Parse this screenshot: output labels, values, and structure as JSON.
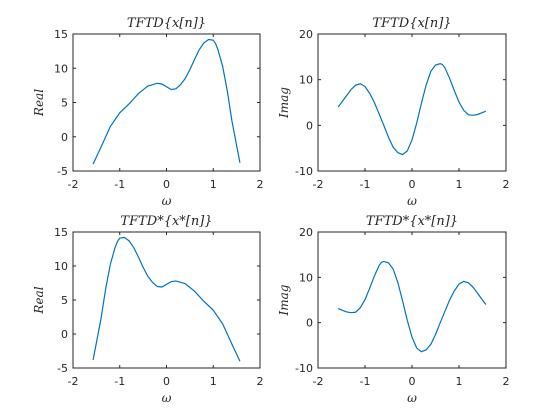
{
  "chart_data": [
    {
      "type": "line",
      "title": "TFTD{x[n]}",
      "xlabel": "ω",
      "ylabel": "Real",
      "xlim": [
        -2,
        2
      ],
      "ylim": [
        -5,
        15
      ],
      "xticks": [
        "-2",
        "-1",
        "0",
        "1",
        "2"
      ],
      "yticks": [
        "-5",
        "0",
        "5",
        "10",
        "15"
      ],
      "grid": false,
      "series": [
        {
          "x": [
            -1.571,
            -1.4,
            -1.2,
            -1.0,
            -0.8,
            -0.6,
            -0.4,
            -0.2,
            -0.1,
            0.0,
            0.1,
            0.2,
            0.3,
            0.4,
            0.5,
            0.6,
            0.7,
            0.8,
            0.9,
            1.0,
            1.05,
            1.1,
            1.2,
            1.3,
            1.4,
            1.5,
            1.571
          ],
          "y": [
            -4,
            -1.5,
            1.5,
            3.5,
            4.8,
            6.3,
            7.4,
            7.8,
            7.7,
            7.3,
            6.9,
            7.0,
            7.6,
            8.5,
            9.8,
            11.3,
            12.7,
            13.7,
            14.2,
            14.1,
            13.6,
            12.7,
            10.3,
            6.7,
            2.3,
            -1.3,
            -3.8
          ],
          "color": "#0072bd"
        }
      ]
    },
    {
      "type": "line",
      "title": "TFTD{x[n]}",
      "xlabel": "ω",
      "ylabel": "Imag",
      "xlim": [
        -2,
        2
      ],
      "ylim": [
        -10,
        20
      ],
      "xticks": [
        "-2",
        "-1",
        "0",
        "1",
        "2"
      ],
      "yticks": [
        "-10",
        "0",
        "10",
        "20"
      ],
      "grid": false,
      "series": [
        {
          "x": [
            -1.571,
            -1.4,
            -1.3,
            -1.2,
            -1.1,
            -1.0,
            -0.9,
            -0.8,
            -0.7,
            -0.6,
            -0.5,
            -0.4,
            -0.3,
            -0.2,
            -0.1,
            0.0,
            0.1,
            0.2,
            0.3,
            0.4,
            0.5,
            0.6,
            0.65,
            0.7,
            0.8,
            0.9,
            1.0,
            1.1,
            1.2,
            1.3,
            1.4,
            1.5,
            1.571
          ],
          "y": [
            4,
            6.4,
            7.8,
            8.8,
            9.1,
            8.5,
            7.0,
            5.0,
            2.5,
            0.0,
            -2.6,
            -4.8,
            -6.0,
            -6.4,
            -5.6,
            -3.2,
            0.5,
            4.8,
            8.8,
            11.8,
            13.2,
            13.5,
            13.3,
            12.6,
            10.3,
            7.6,
            5.1,
            3.3,
            2.3,
            2.2,
            2.4,
            2.8,
            3.1
          ],
          "color": "#0072bd"
        }
      ]
    },
    {
      "type": "line",
      "title": "TFTD*{x*[n]}",
      "xlabel": "ω",
      "ylabel": "Real",
      "xlim": [
        -2,
        2
      ],
      "ylim": [
        -5,
        15
      ],
      "xticks": [
        "-2",
        "-1",
        "0",
        "1",
        "2"
      ],
      "yticks": [
        "-5",
        "0",
        "5",
        "10",
        "15"
      ],
      "grid": false,
      "series": [
        {
          "x": [
            -1.571,
            -1.5,
            -1.4,
            -1.3,
            -1.2,
            -1.1,
            -1.05,
            -1.0,
            -0.9,
            -0.8,
            -0.7,
            -0.6,
            -0.5,
            -0.4,
            -0.3,
            -0.2,
            -0.1,
            0.0,
            0.1,
            0.2,
            0.4,
            0.6,
            0.8,
            1.0,
            1.2,
            1.4,
            1.571
          ],
          "y": [
            -3.8,
            -1.3,
            2.3,
            6.7,
            10.3,
            12.7,
            13.6,
            14.1,
            14.2,
            13.7,
            12.7,
            11.3,
            9.8,
            8.5,
            7.6,
            7.0,
            6.9,
            7.3,
            7.7,
            7.8,
            7.4,
            6.3,
            4.8,
            3.5,
            1.5,
            -1.5,
            -4
          ]
        }
      ]
    },
    {
      "type": "line",
      "title": "TFTD*{x*[n]}",
      "xlabel": "ω",
      "ylabel": "Imag",
      "xlim": [
        -2,
        2
      ],
      "ylim": [
        -10,
        20
      ],
      "xticks": [
        "-2",
        "-1",
        "0",
        "1",
        "2"
      ],
      "yticks": [
        "-10",
        "0",
        "10",
        "20"
      ],
      "grid": false,
      "series": [
        {
          "x": [
            -1.571,
            -1.5,
            -1.4,
            -1.3,
            -1.2,
            -1.1,
            -1.0,
            -0.9,
            -0.8,
            -0.7,
            -0.65,
            -0.6,
            -0.5,
            -0.4,
            -0.3,
            -0.2,
            -0.1,
            0.0,
            0.1,
            0.2,
            0.3,
            0.4,
            0.5,
            0.6,
            0.7,
            0.8,
            0.9,
            1.0,
            1.1,
            1.2,
            1.3,
            1.4,
            1.571
          ],
          "y": [
            3.1,
            2.8,
            2.4,
            2.2,
            2.3,
            3.3,
            5.1,
            7.6,
            10.3,
            12.6,
            13.3,
            13.5,
            13.2,
            11.8,
            8.8,
            4.8,
            0.5,
            -3.2,
            -5.6,
            -6.4,
            -6.0,
            -4.8,
            -2.6,
            0.0,
            2.5,
            5.0,
            7.0,
            8.5,
            9.1,
            8.8,
            7.8,
            6.4,
            4
          ]
        }
      ]
    }
  ]
}
